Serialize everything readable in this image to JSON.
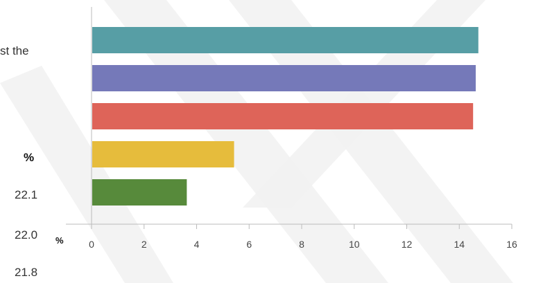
{
  "side_texts": {
    "line1": "st the",
    "line2": "%",
    "line3": "22.1",
    "line4": "22.0",
    "line5": "21.8"
  },
  "chart_data": {
    "type": "bar",
    "orientation": "horizontal",
    "categories": [
      "",
      "",
      "",
      "",
      ""
    ],
    "values": [
      14.7,
      14.6,
      14.5,
      5.4,
      3.6
    ],
    "colors": [
      "#579ea5",
      "#7579b9",
      "#de6459",
      "#e6bc3c",
      "#578a3b"
    ],
    "xlabel": "%",
    "ylabel": "",
    "xlim": [
      0,
      16
    ],
    "xticks": [
      0,
      2,
      4,
      6,
      8,
      10,
      12,
      14,
      16
    ],
    "grid": false,
    "watermark_color": "#f1f1f1"
  }
}
